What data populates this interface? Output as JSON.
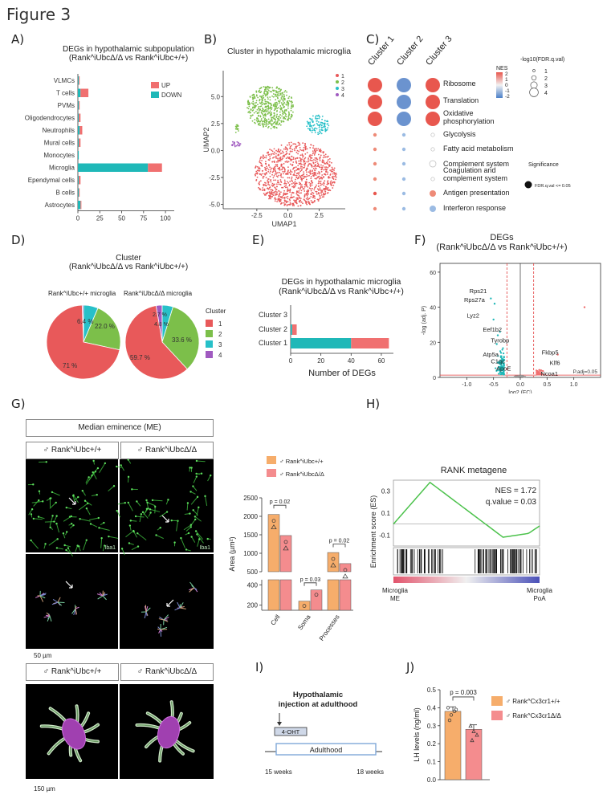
{
  "figure_title": "Figure 3",
  "panel_labels": {
    "A": "A)",
    "B": "B)",
    "C": "C)",
    "D": "D)",
    "E": "E)",
    "F": "F)",
    "G": "G)",
    "H": "H)",
    "I": "I)",
    "J": "J)"
  },
  "colors": {
    "up": "#f07070",
    "down": "#1fb8b8",
    "c1": "#e8595a",
    "c2": "#7cbf4a",
    "c3": "#27c0c8",
    "c4": "#a05ac0",
    "orange": "#f6ad6b",
    "pink": "#f48c8e"
  },
  "panelA": {
    "title1": "DEGs in hypothalamic subpopulation",
    "title2": "(Rank^iUbcΔ/Δ vs Rank^iUbc+/+)",
    "legend_up": "UP",
    "legend_down": "DOWN"
  },
  "panelB": {
    "title": "Cluster in hypothalamic microglia",
    "xlabel": "UMAP1",
    "ylabel": "UMAP2",
    "legend": [
      "1",
      "2",
      "3",
      "4"
    ]
  },
  "panelC": {
    "clusters": [
      "Cluster 1",
      "Cluster 2",
      "Cluster 3"
    ],
    "pathways": [
      "Ribosome",
      "Translation",
      "Oxidative phosphorylation",
      "Glycolysis",
      "Fatty acid metabolism",
      "Complement system",
      "Coagulation and complement system",
      "Antigen presentation",
      "Interferon response"
    ],
    "nes_label": "NES",
    "nes_ticks": [
      "2",
      "1",
      "0",
      "-1",
      "-2"
    ],
    "size_label": "-log10(FDR.q.val)",
    "size_ticks": [
      "1",
      "2",
      "3",
      "4"
    ],
    "sig_label": "Significance",
    "sig_value": "FDR.q.val <= 0.05"
  },
  "panelD": {
    "title1": "Cluster",
    "title2": "(Rank^iUbcΔ/Δ vs Rank^iUbc+/+)",
    "pie1_label": "Rank^iUbc+/+ microglia",
    "pie2_label": "Rank^iUbcΔ/Δ microglia",
    "legend_title": "Cluster",
    "legend": [
      "1",
      "2",
      "3",
      "4"
    ],
    "pie1_pct": [
      "71 %",
      "22.0 %",
      "6.4 %"
    ],
    "pie2_pct": [
      "59.7 %",
      "33.6 %",
      "4.8 %",
      "2.7 %"
    ]
  },
  "panelE": {
    "title1": "DEGs in hypothalamic microglia",
    "title2": "(Rank^iUbcΔ/Δ vs Rank^iUbc+/+)",
    "xlabel": "Number of DEGs"
  },
  "panelF": {
    "title1": "DEGs",
    "title2": "(Rank^iUbcΔ/Δ vs Rank^iUbc+/+)",
    "xlabel": "log2 (FC)",
    "ylabel": "-log (adj. P)",
    "padj": "P.adj=0.05",
    "genes": [
      "Rps21",
      "Rps27a",
      "Lyz2",
      "Eef1b2",
      "Tyrobp",
      "Atp5a",
      "C1qc",
      "ApoE",
      "Fkbp5",
      "Klf6",
      "Ncoa1"
    ]
  },
  "panelG": {
    "title": "Median eminence (ME)",
    "col1": "♂ Rank^iUbc+/+",
    "col2": "♂ Rank^iUbcΔ/Δ",
    "stain": "Iba1",
    "scale1": "50 µm",
    "scale2": "150 µm",
    "bar_legend": [
      "♂ Rank^iUbc+/+",
      "♂ Rank^iUbcΔ/Δ"
    ],
    "ylabel": "Area (µm²)",
    "pvals": [
      "p = 0.02",
      "p = 0.03",
      "p = 0.02"
    ]
  },
  "panelH": {
    "title": "RANK metagene",
    "ylabel": "Enrichment score (ES)",
    "nes": "NES = 1.72",
    "qval": "q.value = 0.03",
    "left_label1": "Microglia",
    "left_label2": "ME",
    "right_label1": "Microglia",
    "right_label2": "PoA"
  },
  "panelI": {
    "title1": "Hypothalamic",
    "title2": "injection at adulthood",
    "drug": "4-OHT",
    "bar": "Adulthood",
    "start": "15 weeks",
    "end": "18 weeks"
  },
  "panelJ": {
    "ylabel": "LH levels (ng/ml)",
    "pval": "p = 0.003",
    "legend": [
      "♂ Rank^Cx3cr1+/+",
      "♂ Rank^Cx3cr1Δ/Δ"
    ]
  },
  "chart_data": [
    {
      "id": "A",
      "type": "bar",
      "orientation": "horizontal",
      "stacked": true,
      "categories": [
        "VLMCs",
        "T cells",
        "PVMs",
        "Oligodendrocytes",
        "Neutrophils",
        "Mural cells",
        "Monocytes",
        "Microglia",
        "Ependymal cells",
        "B cells",
        "Astrocytes"
      ],
      "series": [
        {
          "name": "DOWN",
          "values": [
            1,
            3,
            1,
            1,
            2,
            1,
            1,
            80,
            1,
            1,
            3
          ]
        },
        {
          "name": "UP",
          "values": [
            1,
            9,
            1,
            2,
            3,
            2,
            0,
            16,
            2,
            1,
            1
          ]
        }
      ],
      "xticks": [
        0,
        25,
        50,
        75,
        100
      ],
      "xlim": [
        0,
        110
      ]
    },
    {
      "id": "C",
      "type": "heatmap",
      "rows": [
        "Ribosome",
        "Translation",
        "Oxidative phosphorylation",
        "Glycolysis",
        "Fatty acid metabolism",
        "Complement system",
        "Coagulation and complement system",
        "Antigen presentation",
        "Interferon response"
      ],
      "cols": [
        "Cluster 1",
        "Cluster 2",
        "Cluster 3"
      ],
      "nes": [
        [
          2,
          -2,
          2
        ],
        [
          2,
          -2,
          2
        ],
        [
          2,
          -2,
          2
        ],
        [
          1,
          -1,
          0.5
        ],
        [
          1,
          -1,
          0.5
        ],
        [
          1,
          -1,
          0.5
        ],
        [
          1,
          -1,
          0.5
        ],
        [
          1.5,
          -1.5,
          1
        ],
        [
          1,
          -1,
          -1.5
        ]
      ],
      "size": [
        [
          4,
          4,
          4
        ],
        [
          4,
          4,
          4
        ],
        [
          4,
          4,
          4
        ],
        [
          1,
          1,
          1
        ],
        [
          1,
          1,
          1
        ],
        [
          1,
          1,
          2
        ],
        [
          1,
          1,
          1
        ],
        [
          1,
          1,
          2
        ],
        [
          1,
          1,
          2
        ]
      ]
    },
    {
      "id": "D1",
      "type": "pie",
      "title": "Rank^iUbc+/+ microglia",
      "labels": [
        "1",
        "2",
        "3",
        "4"
      ],
      "values": [
        71.0,
        22.0,
        6.4,
        0.6
      ]
    },
    {
      "id": "D2",
      "type": "pie",
      "title": "Rank^iUbcΔ/Δ microglia",
      "labels": [
        "1",
        "2",
        "3",
        "4"
      ],
      "values": [
        59.7,
        33.6,
        4.8,
        2.7
      ]
    },
    {
      "id": "E",
      "type": "bar",
      "orientation": "horizontal",
      "stacked": true,
      "categories": [
        "Cluster 3",
        "Cluster 2",
        "Cluster 1"
      ],
      "series": [
        {
          "name": "DOWN",
          "values": [
            0,
            1,
            40
          ]
        },
        {
          "name": "UP",
          "values": [
            0,
            3,
            25
          ]
        }
      ],
      "xticks": [
        0,
        20,
        40,
        60
      ],
      "xlim": [
        0,
        68
      ]
    },
    {
      "id": "G",
      "type": "bar",
      "categories": [
        "Cell",
        "Soma",
        "Processes"
      ],
      "ylabel": "Area (µm²)",
      "series": [
        {
          "name": "♂ Rank^iUbc+/+",
          "values": [
            2050,
            240,
            1020
          ]
        },
        {
          "name": "♂ Rank^iUbcΔ/Δ",
          "values": [
            1480,
            350,
            720
          ]
        }
      ],
      "yticks_upper": [
        500,
        1000,
        1500,
        2000,
        2500
      ],
      "yticks_lower": [
        200,
        400
      ]
    },
    {
      "id": "J",
      "type": "bar",
      "categories": [
        "♂ Rank^Cx3cr1+/+",
        "♂ Rank^Cx3cr1Δ/Δ"
      ],
      "values": [
        0.38,
        0.28
      ],
      "ylabel": "LH levels (ng/ml)",
      "yticks": [
        0.0,
        0.1,
        0.2,
        0.3,
        0.4,
        0.5
      ],
      "ylim": [
        0,
        0.5
      ]
    }
  ]
}
